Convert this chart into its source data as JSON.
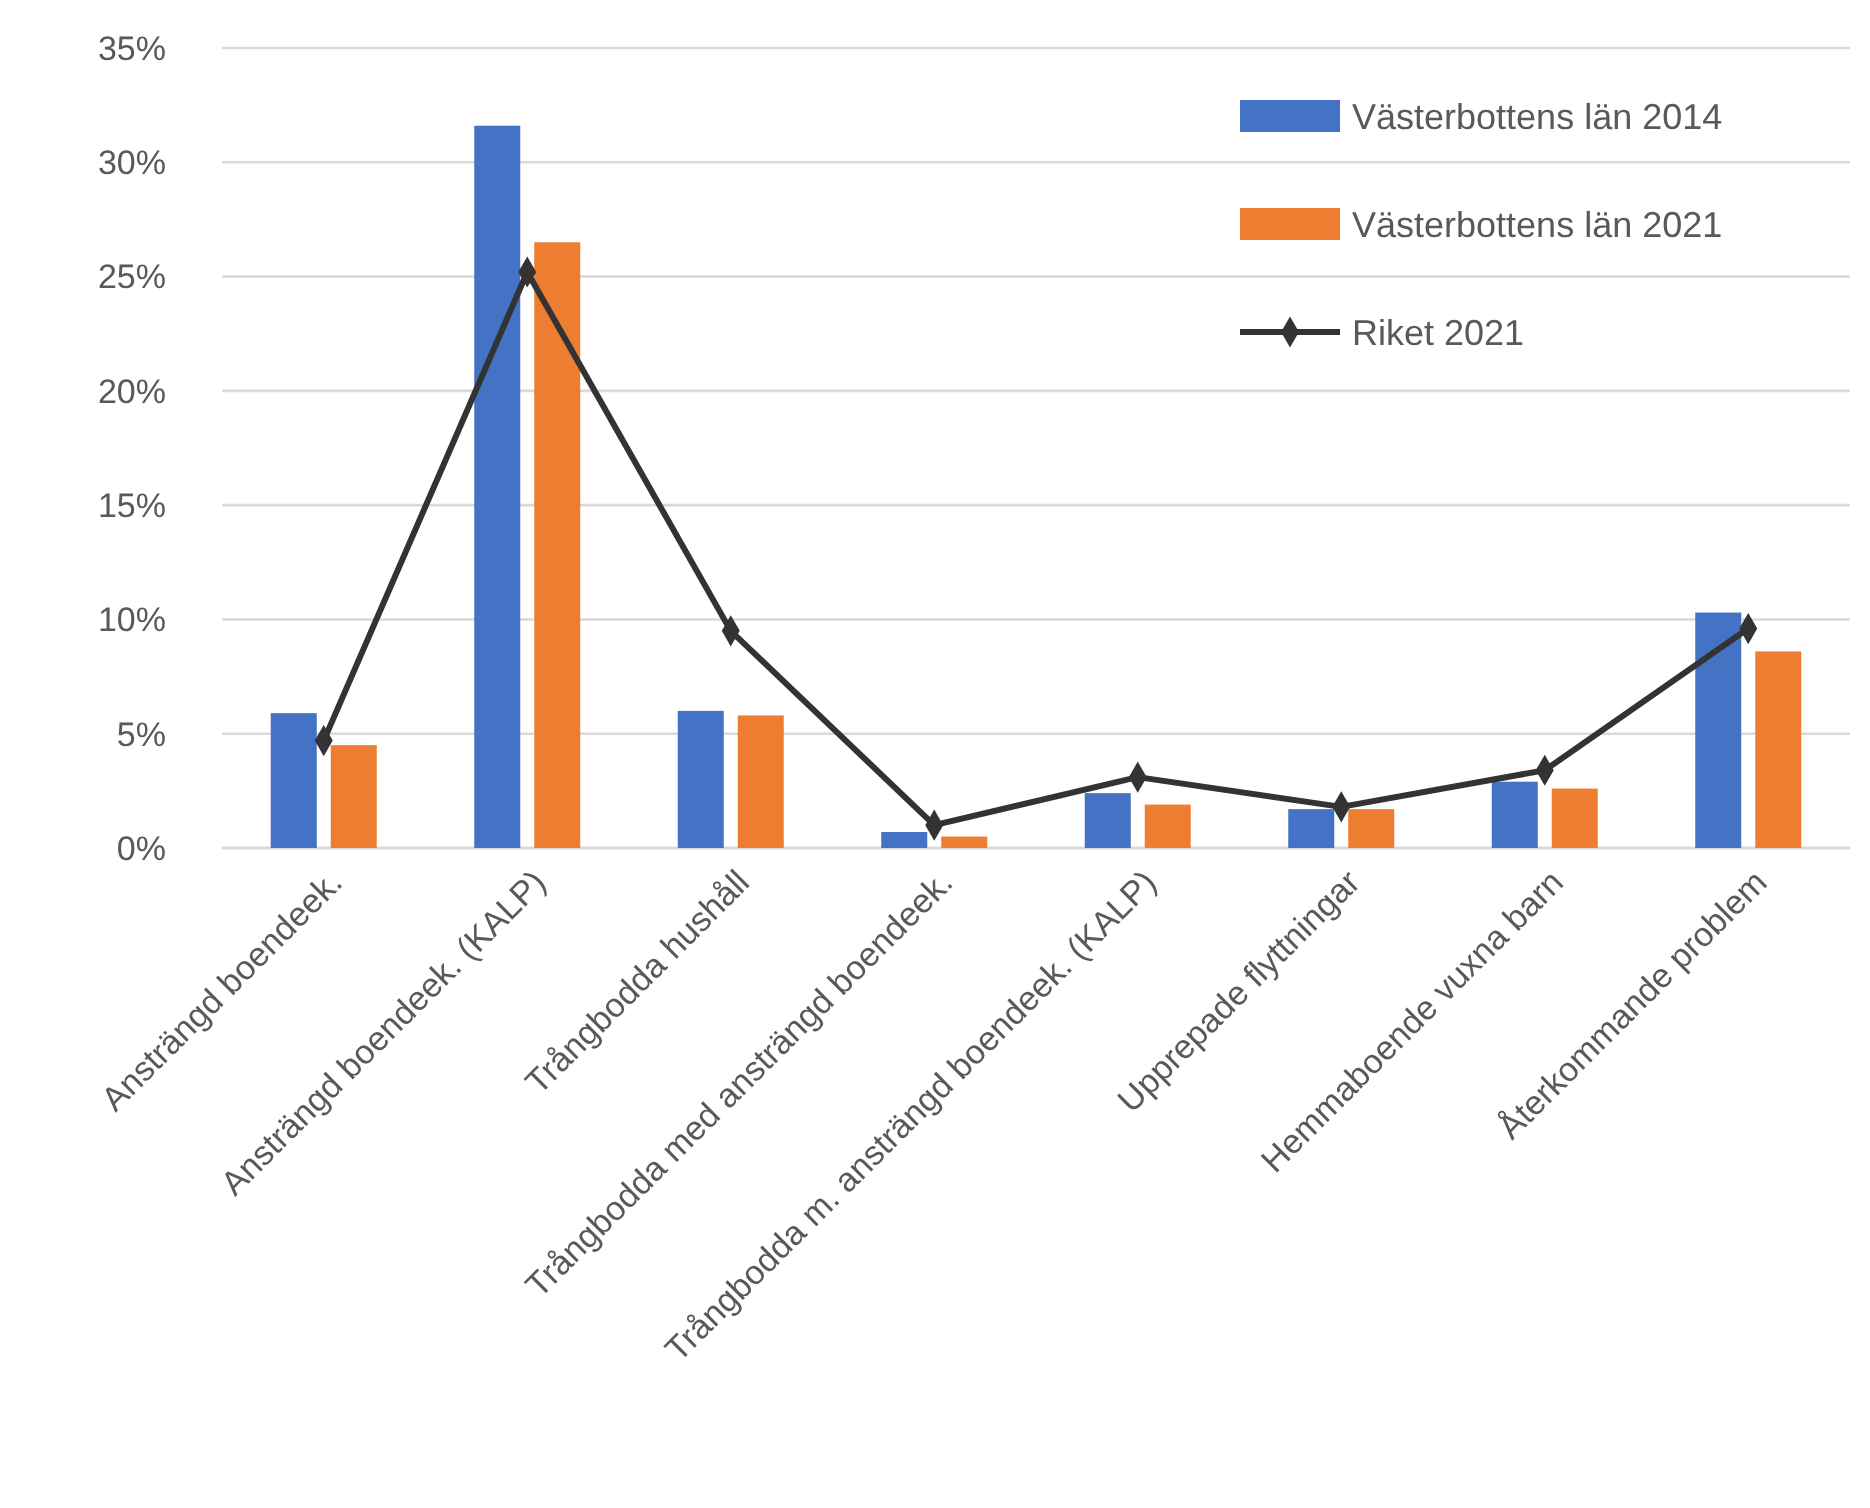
{
  "chart_data": {
    "type": "bar",
    "categories": [
      "Ansträngd boendeek.",
      "Ansträngd boendeek. (KALP)",
      "Trångbodda hushåll",
      "Trångbodda med ansträngd boendeek.",
      "Trångbodda m. ansträngd boendeek. (KALP)",
      "Upprepade flyttningar",
      "Hemmaboende vuxna barn",
      "Återkommande problem"
    ],
    "series": [
      {
        "name": "Västerbottens län 2014",
        "color": "#4472c4",
        "values": [
          5.9,
          31.6,
          6.0,
          0.7,
          2.4,
          1.7,
          2.9,
          10.3
        ]
      },
      {
        "name": "Västerbottens län 2021",
        "color": "#ed7d31",
        "values": [
          4.5,
          26.5,
          5.8,
          0.5,
          1.9,
          1.7,
          2.6,
          8.6
        ]
      },
      {
        "name": "Riket 2021",
        "type": "line",
        "color": "#333333",
        "marker": "diamond",
        "values": [
          4.7,
          25.2,
          9.5,
          1.0,
          3.1,
          1.8,
          3.4,
          9.6
        ]
      }
    ],
    "ylim": [
      0,
      35
    ],
    "yticks": [
      {
        "value": 0,
        "label": "0%"
      },
      {
        "value": 5,
        "label": "5%"
      },
      {
        "value": 10,
        "label": "10%"
      },
      {
        "value": 15,
        "label": "15%"
      },
      {
        "value": 20,
        "label": "20%"
      },
      {
        "value": 25,
        "label": "25%"
      },
      {
        "value": 30,
        "label": "30%"
      },
      {
        "value": 35,
        "label": "35%"
      }
    ],
    "grid": "y",
    "legend": "top right"
  }
}
